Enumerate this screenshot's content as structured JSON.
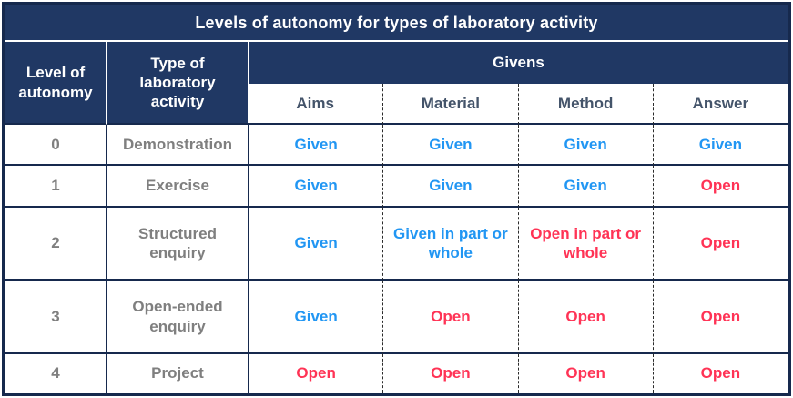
{
  "title": "Levels of autonomy for types of laboratory activity",
  "colors": {
    "header_bg": "#203864",
    "border_dark": "#16294d",
    "given": "#2196F3",
    "open": "#FF3355",
    "muted_text": "#7F7F7F",
    "subheader_text": "#44546A"
  },
  "chart_data": {
    "type": "table",
    "title": "Levels of autonomy for types of laboratory activity",
    "columns": [
      "Level of autonomy",
      "Type of laboratory activity",
      "Aims",
      "Material",
      "Method",
      "Answer"
    ],
    "column_group": {
      "label": "Givens",
      "spans": [
        "Aims",
        "Material",
        "Method",
        "Answer"
      ]
    },
    "rows": [
      [
        "0",
        "Demonstration",
        "Given",
        "Given",
        "Given",
        "Given"
      ],
      [
        "1",
        "Exercise",
        "Given",
        "Given",
        "Given",
        "Open"
      ],
      [
        "2",
        "Structured enquiry",
        "Given",
        "Given in part or whole",
        "Open in part or whole",
        "Open"
      ],
      [
        "3",
        "Open-ended enquiry",
        "Given",
        "Open",
        "Open",
        "Open"
      ],
      [
        "4",
        "Project",
        "Open",
        "Open",
        "Open",
        "Open"
      ]
    ],
    "cell_states": [
      [
        "label",
        "label",
        "given",
        "given",
        "given",
        "given"
      ],
      [
        "label",
        "label",
        "given",
        "given",
        "given",
        "open"
      ],
      [
        "label",
        "label",
        "given",
        "given",
        "open",
        "open"
      ],
      [
        "label",
        "label",
        "given",
        "open",
        "open",
        "open"
      ],
      [
        "label",
        "label",
        "open",
        "open",
        "open",
        "open"
      ]
    ]
  }
}
